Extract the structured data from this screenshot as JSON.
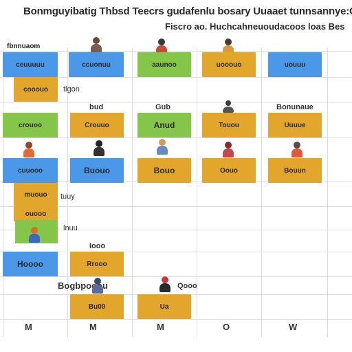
{
  "header": {
    "title": "Bonmguyibatig Thbsd Teecrs gudafenlu bosary Uuaaet tunnsannye:O",
    "subtitle": "Fiscro ao. Huchcahneuoudacoos loas Bes"
  },
  "columns": [
    {
      "label": "fbnnuaom"
    },
    {
      "label": ""
    },
    {
      "label": ""
    },
    {
      "label": ""
    },
    {
      "label": ""
    }
  ],
  "rows": {
    "row1": [
      {
        "text": "ceuuuuu",
        "color": "blue"
      },
      {
        "text": "ccuonuu",
        "color": "blue"
      },
      {
        "text": "aaunoo",
        "color": "green"
      },
      {
        "text": "uooouo",
        "color": "orange"
      },
      {
        "text": "uouuu",
        "color": "blue"
      }
    ],
    "row2": [
      {
        "text": "cooouo",
        "color": "orange"
      }
    ],
    "row3": [
      {
        "text": "crouoo",
        "color": "green"
      },
      {
        "text": "Crouuo",
        "color": "orange"
      },
      {
        "text": "Anud",
        "color": "green"
      },
      {
        "text": "Touou",
        "color": "orange"
      },
      {
        "text": "Uuuue",
        "color": "orange"
      }
    ],
    "row4": [
      {
        "text": "cuuooo",
        "color": "blue"
      },
      {
        "text": "Buouo",
        "color": "blue"
      },
      {
        "text": "Bouo",
        "color": "orange"
      },
      {
        "text": "Oouo",
        "color": "orange"
      },
      {
        "text": "Bouun",
        "color": "orange"
      }
    ],
    "row5": [
      {
        "text": "muouo",
        "color": "orange"
      }
    ],
    "row6": [
      {
        "text": "ouooo",
        "color": "orange"
      }
    ],
    "row7": [
      {
        "text": "",
        "color": "green"
      }
    ],
    "row8": [
      {
        "text": "Hoooo",
        "color": "blue"
      },
      {
        "text": "Rrooo",
        "color": "orange"
      }
    ],
    "row9": [
      {
        "text": "Bu00",
        "color": "orange"
      },
      {
        "text": "Ua",
        "color": "orange"
      }
    ]
  },
  "labels": {
    "r2_side": "tlgon",
    "r3_top_col2": "bud",
    "r3_top_col3": "Gub",
    "r3_top_col5": "Bonunaue",
    "r5_side": "tuuy",
    "r6_side": "lnuu",
    "r8_top": "Iooo",
    "r9_top": "Bogbpooou",
    "r9_top2": "Qooo"
  },
  "footer": {
    "m1": "M",
    "m2": "M",
    "m3": "M",
    "m4": "O",
    "m5": "W"
  },
  "colors": {
    "blue": "#4c98e8",
    "orange": "#e2a62c",
    "green": "#84c54a",
    "grid": "#d9dde2"
  }
}
